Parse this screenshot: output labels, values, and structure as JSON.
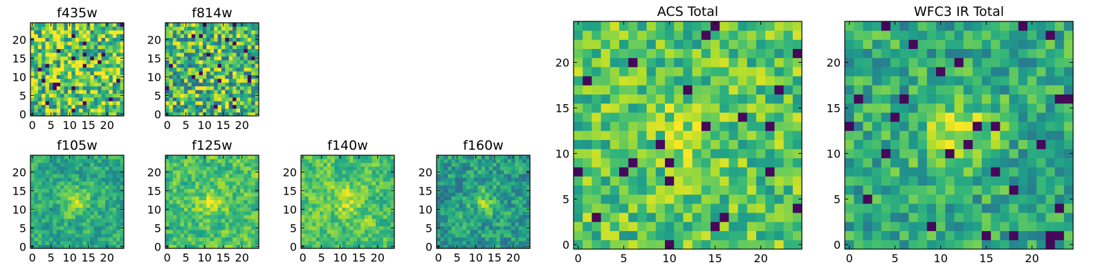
{
  "chart_data": [
    {
      "type": "heatmap",
      "title": "f435w",
      "xlim": [
        -0.5,
        24.5
      ],
      "ylim": [
        -0.5,
        24.5
      ],
      "xticks": [
        0,
        5,
        10,
        15,
        20
      ],
      "yticks": [
        0,
        5,
        10,
        15,
        20
      ],
      "grid_size": [
        25,
        25
      ],
      "colormap": "viridis",
      "grid": false
    },
    {
      "type": "heatmap",
      "title": "f814w",
      "xlim": [
        -0.5,
        24.5
      ],
      "ylim": [
        -0.5,
        24.5
      ],
      "xticks": [
        0,
        5,
        10,
        15,
        20
      ],
      "yticks": [
        0,
        5,
        10,
        15,
        20
      ],
      "grid_size": [
        25,
        25
      ],
      "colormap": "viridis",
      "grid": false
    },
    {
      "type": "heatmap",
      "title": "f105w",
      "xlim": [
        -0.5,
        24.5
      ],
      "ylim": [
        -0.5,
        24.5
      ],
      "xticks": [
        0,
        5,
        10,
        15,
        20
      ],
      "yticks": [
        0,
        5,
        10,
        15,
        20
      ],
      "grid_size": [
        25,
        25
      ],
      "colormap": "viridis",
      "grid": false
    },
    {
      "type": "heatmap",
      "title": "f125w",
      "xlim": [
        -0.5,
        24.5
      ],
      "ylim": [
        -0.5,
        24.5
      ],
      "xticks": [
        0,
        5,
        10,
        15,
        20
      ],
      "yticks": [
        0,
        5,
        10,
        15,
        20
      ],
      "grid_size": [
        25,
        25
      ],
      "colormap": "viridis",
      "grid": false
    },
    {
      "type": "heatmap",
      "title": "f140w",
      "xlim": [
        -0.5,
        24.5
      ],
      "ylim": [
        -0.5,
        24.5
      ],
      "xticks": [
        0,
        5,
        10,
        15,
        20
      ],
      "yticks": [
        0,
        5,
        10,
        15,
        20
      ],
      "grid_size": [
        25,
        25
      ],
      "colormap": "viridis",
      "grid": false
    },
    {
      "type": "heatmap",
      "title": "f160w",
      "xlim": [
        -0.5,
        24.5
      ],
      "ylim": [
        -0.5,
        24.5
      ],
      "xticks": [
        0,
        5,
        10,
        15,
        20
      ],
      "yticks": [
        0,
        5,
        10,
        15,
        20
      ],
      "grid_size": [
        25,
        25
      ],
      "colormap": "viridis",
      "grid": false
    },
    {
      "type": "heatmap",
      "title": "ACS Total",
      "xlim": [
        -0.5,
        24.5
      ],
      "ylim": [
        -0.5,
        24.5
      ],
      "xticks": [
        0,
        5,
        10,
        15,
        20
      ],
      "yticks": [
        0,
        5,
        10,
        15,
        20
      ],
      "grid_size": [
        25,
        25
      ],
      "colormap": "viridis",
      "grid": false
    },
    {
      "type": "heatmap",
      "title": "WFC3 IR Total",
      "xlim": [
        -0.5,
        24.5
      ],
      "ylim": [
        -0.5,
        24.5
      ],
      "xticks": [
        0,
        5,
        10,
        15,
        20
      ],
      "yticks": [
        0,
        5,
        10,
        15,
        20
      ],
      "grid_size": [
        25,
        25
      ],
      "colormap": "viridis",
      "grid": false
    }
  ]
}
